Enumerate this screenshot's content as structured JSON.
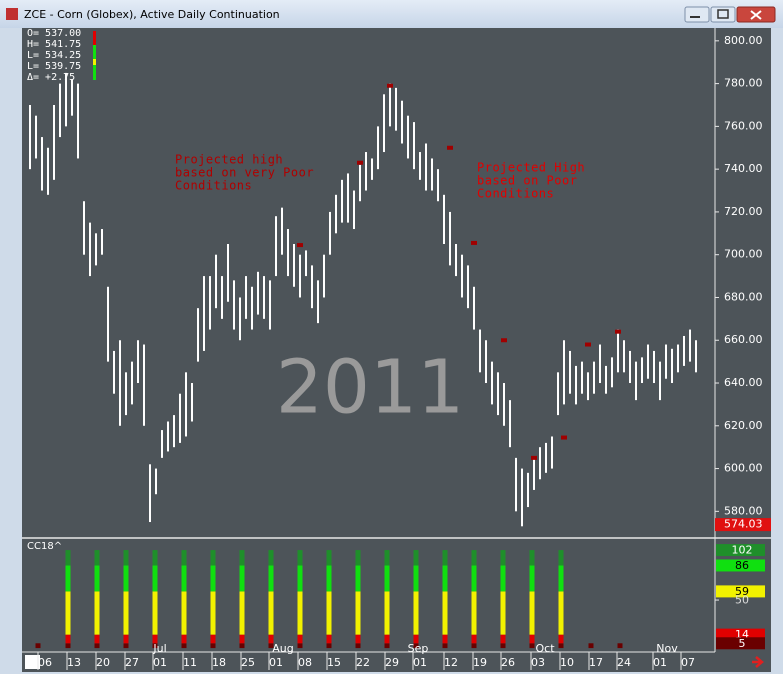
{
  "window": {
    "title": "ZCE - Corn (Globex), Active Daily Continuation"
  },
  "ohlc_readout": [
    "O= 537.00",
    "H= 541.75",
    "L= 534.25",
    "L= 539.75",
    "Δ=   +2.75"
  ],
  "watermark": "2011",
  "annotations": [
    {
      "lines": [
        "Projected high",
        "based on very Poor",
        "Conditions"
      ],
      "color": "#b00000"
    },
    {
      "lines": [
        "Projected High",
        "based on Poor",
        "Conditions"
      ],
      "color": "#e00000"
    }
  ],
  "date_axis": {
    "days": [
      "06",
      "13",
      "20",
      "27",
      "01",
      "11",
      "18",
      "25",
      "01",
      "08",
      "15",
      "22",
      "29",
      "01",
      "12",
      "19",
      "26",
      "03",
      "10",
      "17",
      "24",
      "01",
      "07"
    ],
    "months": [
      "Jul",
      "Aug",
      "Sep",
      "Oct",
      "Nov"
    ]
  },
  "chart_data": [
    {
      "type": "ohlc",
      "color": "#ffffff",
      "high": [
        770,
        765,
        755,
        750,
        770,
        780,
        785,
        782,
        780,
        725,
        715,
        710,
        712,
        685,
        655,
        660,
        645,
        650,
        660,
        658,
        602,
        600,
        618,
        622,
        625,
        635,
        645,
        640,
        675,
        690,
        690,
        700,
        690,
        705,
        688,
        680,
        690,
        685,
        692,
        690,
        688,
        718,
        722,
        712,
        705,
        700,
        702,
        695,
        688,
        700,
        720,
        728,
        735,
        738,
        730,
        742,
        748,
        745,
        760,
        775,
        780,
        778,
        772,
        765,
        762,
        748,
        752,
        745,
        740,
        728,
        720,
        705,
        700,
        695,
        685,
        665,
        660,
        650,
        645,
        640,
        632,
        605,
        600,
        598,
        605,
        610,
        612,
        615,
        645,
        660,
        655,
        648,
        650,
        645,
        650,
        658,
        648,
        652,
        665,
        660,
        655,
        650,
        652,
        658,
        655,
        650,
        658,
        656,
        658,
        662,
        665,
        660
      ],
      "low": [
        740,
        745,
        730,
        728,
        735,
        755,
        760,
        765,
        745,
        700,
        690,
        695,
        700,
        650,
        635,
        620,
        625,
        630,
        640,
        620,
        575,
        588,
        605,
        608,
        610,
        612,
        615,
        622,
        650,
        655,
        665,
        675,
        670,
        678,
        665,
        660,
        670,
        665,
        672,
        670,
        665,
        690,
        700,
        690,
        685,
        680,
        690,
        675,
        668,
        680,
        700,
        710,
        715,
        715,
        712,
        725,
        730,
        735,
        740,
        748,
        760,
        758,
        752,
        745,
        740,
        735,
        730,
        730,
        725,
        705,
        695,
        690,
        680,
        675,
        665,
        645,
        640,
        630,
        625,
        620,
        610,
        580,
        573,
        582,
        590,
        595,
        598,
        600,
        625,
        630,
        635,
        630,
        635,
        632,
        635,
        640,
        635,
        638,
        645,
        645,
        640,
        632,
        640,
        642,
        640,
        632,
        642,
        640,
        645,
        648,
        650,
        645
      ],
      "markers": {
        "color": "#a00000",
        "bars": [
          45,
          55,
          60,
          70,
          74,
          79,
          84,
          89,
          93,
          98
        ],
        "values": [
          704.5,
          743,
          779,
          750,
          705.5,
          660,
          605,
          614.5,
          658,
          664
        ]
      },
      "ylim": [
        568,
        806
      ],
      "yticks": [
        {
          "value": 800,
          "label": "800.00"
        },
        {
          "value": 780,
          "label": "780.00"
        },
        {
          "value": 760,
          "label": "760.00"
        },
        {
          "value": 740,
          "label": "740.00"
        },
        {
          "value": 720,
          "label": "720.00"
        },
        {
          "value": 700,
          "label": "700.00"
        },
        {
          "value": 680,
          "label": "680.00"
        },
        {
          "value": 660,
          "label": "660.00"
        },
        {
          "value": 640,
          "label": "640.00"
        },
        {
          "value": 620,
          "label": "620.00"
        },
        {
          "value": 600,
          "label": "600.00"
        },
        {
          "value": 580,
          "label": "580.00"
        }
      ],
      "last_price": 574.03,
      "last_price_color": "#e01010"
    },
    {
      "type": "stacked_bar",
      "title": "CC18^",
      "series": [
        {
          "color": "#6a0000",
          "values": [
            5,
            5,
            5,
            5,
            5,
            5,
            5,
            5,
            5,
            5,
            5,
            5,
            5,
            5,
            5,
            5,
            5,
            5,
            5,
            5,
            5
          ]
        },
        {
          "color": "#e00000",
          "values": [
            0,
            9,
            9,
            9,
            9,
            9,
            9,
            9,
            9,
            9,
            9,
            9,
            9,
            9,
            9,
            9,
            9,
            9,
            9,
            0,
            0
          ]
        },
        {
          "color": "#f2f200",
          "values": [
            0,
            45,
            45,
            45,
            45,
            45,
            45,
            45,
            45,
            45,
            45,
            45,
            45,
            45,
            45,
            45,
            45,
            45,
            45,
            0,
            0
          ]
        },
        {
          "color": "#10e010",
          "values": [
            0,
            27,
            27,
            27,
            27,
            27,
            27,
            27,
            27,
            27,
            27,
            27,
            27,
            27,
            27,
            27,
            27,
            27,
            27,
            0,
            0
          ]
        },
        {
          "color": "#1f8f2a",
          "values": [
            0,
            16,
            16,
            16,
            16,
            16,
            16,
            16,
            16,
            16,
            16,
            16,
            16,
            16,
            16,
            16,
            16,
            16,
            16,
            0,
            0
          ]
        }
      ],
      "ylim": [
        -2,
        112.5
      ],
      "yticks": [
        102,
        86,
        59,
        50,
        14,
        5
      ],
      "ytick_boxes": [
        "#1f8f2a",
        "#10e010",
        "#f2f200",
        null,
        "#e00000",
        "#6a0000"
      ]
    }
  ]
}
